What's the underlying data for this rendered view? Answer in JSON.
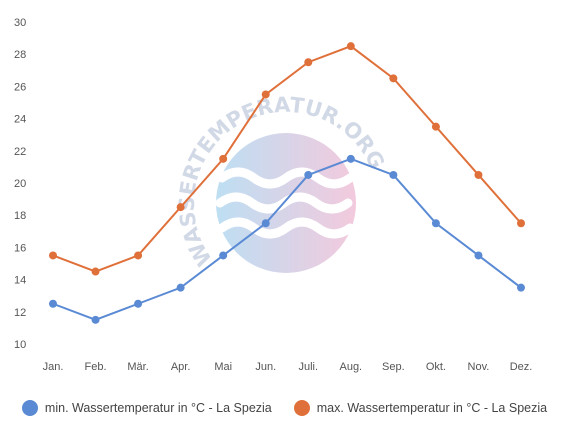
{
  "watermark": {
    "text": "WASSERTEMPERATUR.ORG",
    "colors": [
      "#a8d4ef",
      "#efb8d2"
    ]
  },
  "legend": {
    "position": "bottom",
    "items": [
      {
        "label": "min. Wassertemperatur in °C - La Spezia",
        "color": "#5a8ad4"
      },
      {
        "label": "max. Wassertemperatur in °C - La Spezia",
        "color": "#e0703a"
      }
    ]
  },
  "chart_data": {
    "type": "line",
    "title": "",
    "xlabel": "",
    "ylabel": "",
    "categories": [
      "Jan.",
      "Feb.",
      "Mär.",
      "Apr.",
      "Mai",
      "Jun.",
      "Juli.",
      "Aug.",
      "Sep.",
      "Okt.",
      "Nov.",
      "Dez."
    ],
    "ylim": [
      10,
      30
    ],
    "yticks": [
      10,
      12,
      14,
      16,
      18,
      20,
      22,
      24,
      26,
      28,
      30
    ],
    "grid": false,
    "series": [
      {
        "name": "min. Wassertemperatur in °C - La Spezia",
        "color": "#5a8ad4",
        "values": [
          12.5,
          11.5,
          12.5,
          13.5,
          15.5,
          17.5,
          20.5,
          21.5,
          20.5,
          17.5,
          15.5,
          13.5
        ]
      },
      {
        "name": "max. Wassertemperatur in °C - La Spezia",
        "color": "#e0703a",
        "values": [
          15.5,
          14.5,
          15.5,
          18.5,
          21.5,
          25.5,
          27.5,
          28.5,
          26.5,
          23.5,
          20.5,
          17.5
        ]
      }
    ]
  }
}
